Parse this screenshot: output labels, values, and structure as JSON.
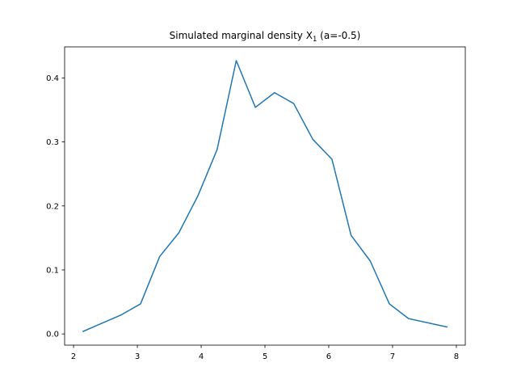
{
  "chart_data": {
    "type": "line",
    "title": "Simulated marginal density X",
    "title_subscript": "1",
    "title_suffix": " (a=-0.5)",
    "xlabel": "",
    "ylabel": "",
    "xlim": [
      1.86,
      8.14
    ],
    "ylim": [
      -0.0175,
      0.4485
    ],
    "x_ticks": [
      2,
      3,
      4,
      5,
      6,
      7,
      8
    ],
    "y_ticks": [
      0.0,
      0.1,
      0.2,
      0.3,
      0.4
    ],
    "y_tick_labels": [
      "0.0",
      "0.1",
      "0.2",
      "0.3",
      "0.4"
    ],
    "grid": false,
    "line_color": "#1f77b4",
    "series": [
      {
        "x": [
          2.15,
          2.75,
          3.05,
          3.35,
          3.65,
          3.95,
          4.25,
          4.55,
          4.85,
          5.15,
          5.45,
          5.75,
          6.05,
          6.35,
          6.65,
          6.95,
          7.25,
          7.85
        ],
        "y": [
          0.004,
          0.03,
          0.047,
          0.121,
          0.158,
          0.216,
          0.288,
          0.427,
          0.354,
          0.377,
          0.36,
          0.304,
          0.273,
          0.154,
          0.114,
          0.047,
          0.024,
          0.011
        ]
      }
    ]
  }
}
